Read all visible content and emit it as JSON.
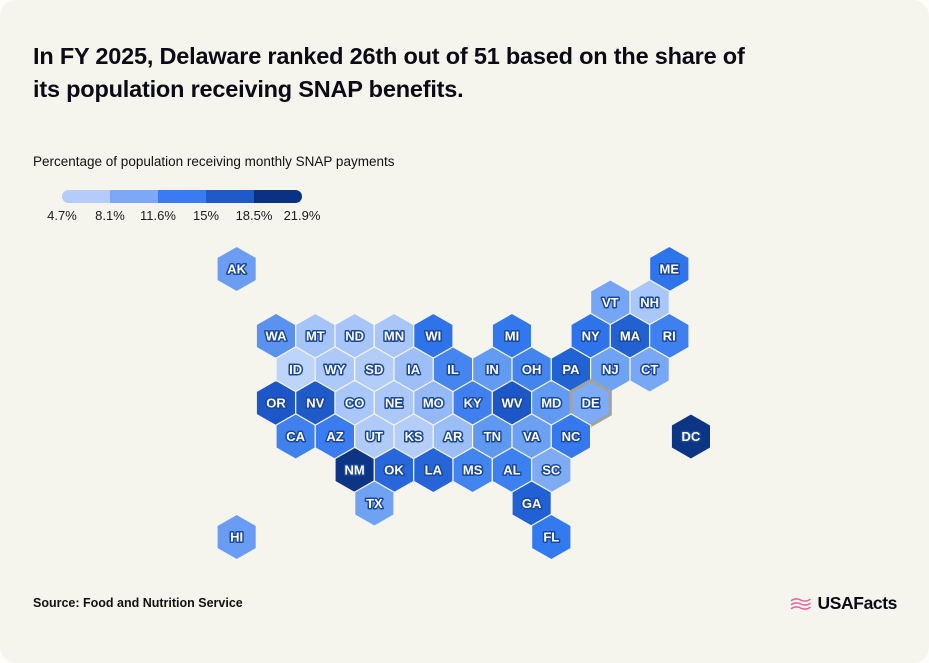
{
  "title": "In FY 2025, Delaware ranked 26th out of 51 based on the share of\nits population receiving SNAP benefits.",
  "subtitle": "Percentage of population receiving monthly SNAP payments",
  "source": "Source: Food and Nutrition Service",
  "logo": {
    "text": "USAFacts",
    "flag_color": "#ef5f9f"
  },
  "legend": {
    "labels": [
      "4.7%",
      "8.1%",
      "11.6%",
      "15%",
      "18.5%",
      "21.9%"
    ],
    "colors": [
      "#b3ccf9",
      "#7da8f6",
      "#3a7af2",
      "#1f5bc8",
      "#0b3182"
    ]
  },
  "chart_data": {
    "type": "heatmap",
    "subtype": "us-state-hex-choropleth",
    "title": "Percentage of population receiving monthly SNAP payments",
    "legend_stops": [
      "4.7%",
      "8.1%",
      "11.6%",
      "15%",
      "18.5%",
      "21.9%"
    ],
    "legend_colors": [
      "#b3ccf9",
      "#7da8f6",
      "#3a7af2",
      "#1f5bc8",
      "#0b3182"
    ],
    "highlighted_state": "DE",
    "highlight_border_color": "#a5a19a",
    "states": [
      {
        "abbr": "AK",
        "col": -1,
        "row": 0,
        "color": "#6b9df3"
      },
      {
        "abbr": "ME",
        "col": 10,
        "row": 0,
        "color": "#2e74ea"
      },
      {
        "abbr": "VT",
        "col": 8.5,
        "row": 1,
        "color": "#75a5f4"
      },
      {
        "abbr": "NH",
        "col": 9.5,
        "row": 1,
        "color": "#a9c7f8"
      },
      {
        "abbr": "WA",
        "col": 0,
        "row": 2,
        "color": "#5b92f0"
      },
      {
        "abbr": "MT",
        "col": 1,
        "row": 2,
        "color": "#a5c4f8"
      },
      {
        "abbr": "ND",
        "col": 2,
        "row": 2,
        "color": "#a7c5f8"
      },
      {
        "abbr": "MN",
        "col": 3,
        "row": 2,
        "color": "#a8c6f8"
      },
      {
        "abbr": "WI",
        "col": 4,
        "row": 2,
        "color": "#2e73ea"
      },
      {
        "abbr": "MI",
        "col": 6,
        "row": 2,
        "color": "#3178ee"
      },
      {
        "abbr": "NY",
        "col": 8,
        "row": 2,
        "color": "#2e73ea"
      },
      {
        "abbr": "MA",
        "col": 9,
        "row": 2,
        "color": "#2161d2"
      },
      {
        "abbr": "RI",
        "col": 10,
        "row": 2,
        "color": "#3e80ef"
      },
      {
        "abbr": "ID",
        "col": 0.5,
        "row": 3,
        "color": "#bdd5fb"
      },
      {
        "abbr": "WY",
        "col": 1.5,
        "row": 3,
        "color": "#adc9f8"
      },
      {
        "abbr": "SD",
        "col": 2.5,
        "row": 3,
        "color": "#b3cdf9"
      },
      {
        "abbr": "IA",
        "col": 3.5,
        "row": 3,
        "color": "#9dbef7"
      },
      {
        "abbr": "IL",
        "col": 4.5,
        "row": 3,
        "color": "#4585ef"
      },
      {
        "abbr": "IN",
        "col": 5.5,
        "row": 3,
        "color": "#639af2"
      },
      {
        "abbr": "OH",
        "col": 6.5,
        "row": 3,
        "color": "#4484ef"
      },
      {
        "abbr": "PA",
        "col": 7.5,
        "row": 3,
        "color": "#2263d4"
      },
      {
        "abbr": "NJ",
        "col": 8.5,
        "row": 3,
        "color": "#6ea2f3"
      },
      {
        "abbr": "CT",
        "col": 9.5,
        "row": 3,
        "color": "#78a7f4"
      },
      {
        "abbr": "OR",
        "col": 0,
        "row": 4,
        "color": "#1d56c6"
      },
      {
        "abbr": "NV",
        "col": 1,
        "row": 4,
        "color": "#1f5ac9"
      },
      {
        "abbr": "CO",
        "col": 2,
        "row": 4,
        "color": "#a9c7f8"
      },
      {
        "abbr": "NE",
        "col": 3,
        "row": 4,
        "color": "#abc8f8"
      },
      {
        "abbr": "MO",
        "col": 4,
        "row": 4,
        "color": "#94b9f6"
      },
      {
        "abbr": "KY",
        "col": 5,
        "row": 4,
        "color": "#3f80ee"
      },
      {
        "abbr": "WV",
        "col": 6,
        "row": 4,
        "color": "#1d56c6"
      },
      {
        "abbr": "MD",
        "col": 7,
        "row": 4,
        "color": "#619af2"
      },
      {
        "abbr": "DE",
        "col": 8,
        "row": 4,
        "color": "#7dabf5",
        "highlighted": true
      },
      {
        "abbr": "CA",
        "col": 0.5,
        "row": 5,
        "color": "#4181ee"
      },
      {
        "abbr": "AZ",
        "col": 1.5,
        "row": 5,
        "color": "#3b7cf0"
      },
      {
        "abbr": "UT",
        "col": 2.5,
        "row": 5,
        "color": "#b1cbf9"
      },
      {
        "abbr": "KS",
        "col": 3.5,
        "row": 5,
        "color": "#b5cef9"
      },
      {
        "abbr": "AR",
        "col": 4.5,
        "row": 5,
        "color": "#9cbef7"
      },
      {
        "abbr": "TN",
        "col": 5.5,
        "row": 5,
        "color": "#5f98f1"
      },
      {
        "abbr": "VA",
        "col": 6.5,
        "row": 5,
        "color": "#6ba0f3"
      },
      {
        "abbr": "NC",
        "col": 7.5,
        "row": 5,
        "color": "#3679ef"
      },
      {
        "abbr": "DC",
        "col": 10.55,
        "row": 5,
        "color": "#0d3585"
      },
      {
        "abbr": "NM",
        "col": 2,
        "row": 6,
        "color": "#0c3585"
      },
      {
        "abbr": "OK",
        "col": 3,
        "row": 6,
        "color": "#2767db"
      },
      {
        "abbr": "LA",
        "col": 4,
        "row": 6,
        "color": "#2565d8"
      },
      {
        "abbr": "MS",
        "col": 5,
        "row": 6,
        "color": "#4285f0"
      },
      {
        "abbr": "AL",
        "col": 6,
        "row": 6,
        "color": "#3d80f0"
      },
      {
        "abbr": "SC",
        "col": 7,
        "row": 6,
        "color": "#7fabf5"
      },
      {
        "abbr": "TX",
        "col": 2.5,
        "row": 7,
        "color": "#6fa2f3"
      },
      {
        "abbr": "GA",
        "col": 6.5,
        "row": 7,
        "color": "#2161d3"
      },
      {
        "abbr": "HI",
        "col": -1,
        "row": 8,
        "color": "#699df3"
      },
      {
        "abbr": "FL",
        "col": 7,
        "row": 8,
        "color": "#3379ef"
      }
    ]
  }
}
